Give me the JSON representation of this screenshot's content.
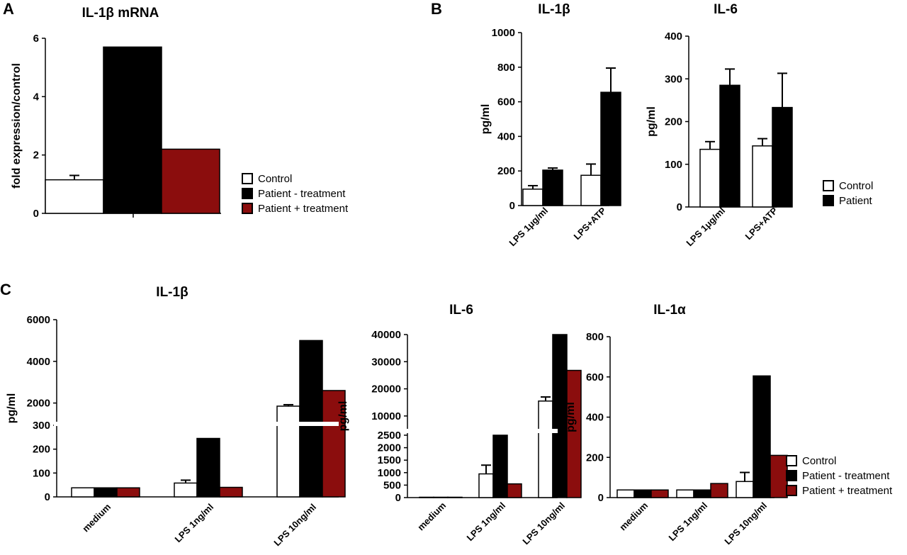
{
  "colors": {
    "control": "#ffffff",
    "untreated": "#000000",
    "treated": "#8b0d0d",
    "stroke": "#000000"
  },
  "panel_labels": {
    "a": "A",
    "b": "B",
    "c": "C"
  },
  "legend_a": [
    "Control",
    "Patient - treatment",
    "Patient + treatment"
  ],
  "legend_b": [
    "Control",
    "Patient"
  ],
  "legend_c": [
    "Control",
    "Patient - treatment",
    "Patient + treatment"
  ],
  "chart_data": [
    {
      "id": "a",
      "type": "bar",
      "title": "IL-1β mRNA",
      "ylabel": "fold expression/control",
      "ylim": [
        0,
        6
      ],
      "yticks": [
        0,
        2,
        4,
        6
      ],
      "categories": [
        ""
      ],
      "series": [
        {
          "name": "Control",
          "values": [
            1.15
          ],
          "err": [
            0.15
          ]
        },
        {
          "name": "Patient - treatment",
          "values": [
            5.7
          ]
        },
        {
          "name": "Patient + treatment",
          "values": [
            2.2
          ]
        }
      ]
    },
    {
      "id": "b1",
      "type": "bar",
      "title": "IL-1β",
      "ylabel": "pg/ml",
      "ylim": [
        0,
        1000
      ],
      "yticks": [
        0,
        200,
        400,
        600,
        800,
        1000
      ],
      "categories": [
        "LPS 1μg/ml",
        "LPS+ATP"
      ],
      "series": [
        {
          "name": "Control",
          "values": [
            95,
            175
          ],
          "err": [
            20,
            65
          ]
        },
        {
          "name": "Patient",
          "values": [
            205,
            655
          ],
          "err": [
            12,
            140
          ]
        }
      ]
    },
    {
      "id": "b2",
      "type": "bar",
      "title": "IL-6",
      "ylabel": "pg/ml",
      "ylim": [
        0,
        400
      ],
      "yticks": [
        0,
        100,
        200,
        300,
        400
      ],
      "categories": [
        "LPS 1μg/ml",
        "LPS+ATP"
      ],
      "series": [
        {
          "name": "Control",
          "values": [
            135,
            143
          ],
          "err": [
            18,
            17
          ]
        },
        {
          "name": "Patient",
          "values": [
            285,
            233
          ],
          "err": [
            38,
            80
          ]
        }
      ]
    },
    {
      "id": "c1",
      "type": "bar",
      "title": "IL-1β",
      "ylabel": "pg/ml",
      "yticks_low": [
        0,
        100,
        200,
        300
      ],
      "yticks_high": [
        2000,
        4000,
        6000
      ],
      "categories": [
        "medium",
        "LPS 1ng/ml",
        "LPS 10ng/ml"
      ],
      "series": [
        {
          "name": "Control",
          "values": [
            38,
            58,
            1850
          ],
          "err": [
            0,
            12,
            70
          ]
        },
        {
          "name": "Patient - treatment",
          "values": [
            38,
            245,
            5000
          ]
        },
        {
          "name": "Patient + treatment",
          "values": [
            38,
            40,
            2600
          ]
        }
      ]
    },
    {
      "id": "c2",
      "type": "bar",
      "title": "IL-6",
      "ylabel": "pg/ml",
      "yticks_low": [
        0,
        500,
        1000,
        1500,
        2000,
        2500
      ],
      "yticks_high": [
        10000,
        20000,
        30000,
        40000
      ],
      "categories": [
        "medium",
        "LPS 1ng/ml",
        "LPS 10ng/ml"
      ],
      "series": [
        {
          "name": "Control",
          "values": [
            15,
            950,
            15500
          ],
          "err": [
            0,
            350,
            1500
          ]
        },
        {
          "name": "Patient - treatment",
          "values": [
            15,
            2500,
            40000
          ]
        },
        {
          "name": "Patient + treatment",
          "values": [
            15,
            550,
            26800
          ]
        }
      ]
    },
    {
      "id": "c3",
      "type": "bar",
      "title": "IL-1α",
      "ylabel": "pg/ml",
      "ylim": [
        0,
        800
      ],
      "yticks": [
        0,
        200,
        400,
        600,
        800
      ],
      "categories": [
        "medium",
        "LPS 1ng/ml",
        "LPS 10ng/ml"
      ],
      "series": [
        {
          "name": "Control",
          "values": [
            38,
            38,
            80
          ],
          "err": [
            0,
            0,
            45
          ]
        },
        {
          "name": "Patient - treatment",
          "values": [
            38,
            38,
            605
          ]
        },
        {
          "name": "Patient + treatment",
          "values": [
            38,
            70,
            210
          ]
        }
      ]
    }
  ]
}
